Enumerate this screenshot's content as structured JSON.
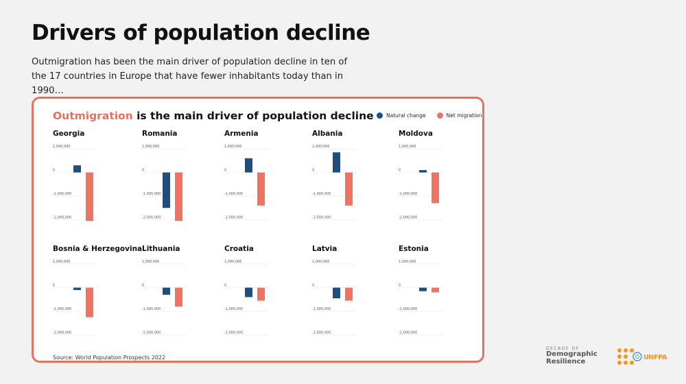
{
  "header": {
    "title": "Drivers of population decline",
    "subtitle": "Outmigration has been the main driver of population decline in ten of the 17 countries in Europe that have fewer inhabitants today than in 1990…"
  },
  "card": {
    "title_accent": "Outmigration",
    "title_rest": " is the main driver of population decline",
    "source": "Source: World Population Prospects 2022"
  },
  "colors": {
    "natural": "#1b4f82",
    "migration": "#ef7363",
    "accent": "#e8705f"
  },
  "legend": [
    {
      "label": "Natural change",
      "color": "#1b4f82"
    },
    {
      "label": "Net migration",
      "color": "#ef7363"
    }
  ],
  "chart_data": [
    {
      "type": "bar",
      "title": "Georgia",
      "categories": [
        "Natural change",
        "Net migration"
      ],
      "values": [
        300000,
        -2050000
      ],
      "y_ticks": [
        "1,000,000",
        "0",
        "-1,000,000",
        "-2,000,000"
      ]
    },
    {
      "type": "bar",
      "title": "Romania",
      "categories": [
        "Natural change",
        "Net migration"
      ],
      "values": [
        -1500000,
        -2050000
      ],
      "y_ticks": [
        "1,000,000",
        "0",
        "-1,000,000",
        "-2,000,000"
      ]
    },
    {
      "type": "bar",
      "title": "Armenia",
      "categories": [
        "Natural change",
        "Net migration"
      ],
      "values": [
        600000,
        -1400000
      ],
      "y_ticks": [
        "1,000,000",
        "0",
        "-1,000,000",
        "-2,000,000"
      ]
    },
    {
      "type": "bar",
      "title": "Albania",
      "categories": [
        "Natural change",
        "Net migration"
      ],
      "values": [
        850000,
        -1400000
      ],
      "y_ticks": [
        "1,000,000",
        "0",
        "-1,000,000",
        "-2,000,000"
      ]
    },
    {
      "type": "bar",
      "title": "Moldova",
      "categories": [
        "Natural change",
        "Net migration"
      ],
      "values": [
        100000,
        -1300000
      ],
      "y_ticks": [
        "1,000,000",
        "0",
        "-1,000,000",
        "-2,000,000"
      ]
    },
    {
      "type": "bar",
      "title": "Bosnia & Herzegovina",
      "categories": [
        "Natural change",
        "Net migration"
      ],
      "values": [
        -100000,
        -1250000
      ],
      "y_ticks": [
        "1,000,000",
        "0",
        "-1,000,000",
        "-2,000,000"
      ]
    },
    {
      "type": "bar",
      "title": "Lithuania",
      "categories": [
        "Natural change",
        "Net migration"
      ],
      "values": [
        -300000,
        -800000
      ],
      "y_ticks": [
        "1,000,000",
        "0",
        "-1,000,000",
        "-2,000,000"
      ]
    },
    {
      "type": "bar",
      "title": "Croatia",
      "categories": [
        "Natural change",
        "Net migration"
      ],
      "values": [
        -400000,
        -550000
      ],
      "y_ticks": [
        "1,000,000",
        "0",
        "-1,000,000",
        "-2,000,000"
      ]
    },
    {
      "type": "bar",
      "title": "Latvia",
      "categories": [
        "Natural change",
        "Net migration"
      ],
      "values": [
        -450000,
        -550000
      ],
      "y_ticks": [
        "1,000,000",
        "0",
        "-1,000,000",
        "-2,000,000"
      ]
    },
    {
      "type": "bar",
      "title": "Estonia",
      "categories": [
        "Natural change",
        "Net migration"
      ],
      "values": [
        -150000,
        -200000
      ],
      "y_ticks": [
        "1,000,000",
        "0",
        "-1,000,000",
        "-2,000,000"
      ]
    }
  ],
  "logos": {
    "drs_line1": "DECADE OF",
    "drs_line2": "Demographic",
    "drs_line3": "Resilience",
    "unfpa": "UNFPA"
  }
}
